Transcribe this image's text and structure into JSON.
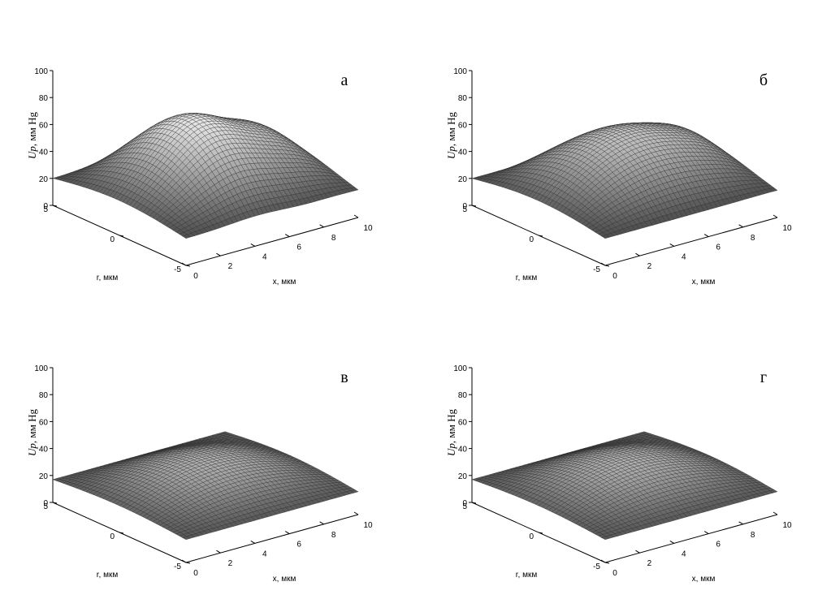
{
  "chart_data": [
    {
      "type": "surface3d",
      "panel_label": "а",
      "zlabel": "Up, мм Hg",
      "zlabel_italic_part": "Up",
      "zlabel_rest": ", мм Hg",
      "xlabel": "x, мкм",
      "ylabel": "r, мкм",
      "xlim": [
        0,
        10
      ],
      "ylim": [
        -5,
        5
      ],
      "zlim": [
        0,
        100
      ],
      "xticks": [
        "0",
        "2",
        "4",
        "6",
        "8",
        "10"
      ],
      "yticks": [
        "5",
        "0",
        "-5"
      ],
      "zticks": [
        "0",
        "20",
        "40",
        "60",
        "80",
        "100"
      ],
      "surface": {
        "base": 20,
        "amplitude": 38,
        "bumps": [
          {
            "x": 4.2,
            "r": 0.5,
            "height": 14,
            "width": 1.6
          },
          {
            "x": 8.8,
            "r": 0.5,
            "height": 8,
            "width": 1.4
          }
        ]
      }
    },
    {
      "type": "surface3d",
      "panel_label": "б",
      "zlabel": "Up, мм Hg",
      "zlabel_italic_part": "Up",
      "zlabel_rest": ", мм Hg",
      "xlabel": "x, мкм",
      "ylabel": "r, мкм",
      "xlim": [
        0,
        10
      ],
      "ylim": [
        -5,
        5
      ],
      "zlim": [
        0,
        100
      ],
      "xticks": [
        "0",
        "2",
        "4",
        "6",
        "8",
        "10"
      ],
      "yticks": [
        "5",
        "0",
        "-5"
      ],
      "zticks": [
        "0",
        "20",
        "40",
        "60",
        "80",
        "100"
      ],
      "surface": {
        "base": 20,
        "amplitude": 40,
        "bumps": [
          {
            "x": 9.2,
            "r": 0.5,
            "height": 6,
            "width": 1.2
          }
        ]
      }
    },
    {
      "type": "surface3d",
      "panel_label": "в",
      "zlabel": "Up, мм Hg",
      "zlabel_italic_part": "Up",
      "zlabel_rest": ", мм Hg",
      "xlabel": "x, мкм",
      "ylabel": "r, мкм",
      "xlim": [
        0,
        10
      ],
      "ylim": [
        -5,
        5
      ],
      "zlim": [
        0,
        100
      ],
      "xticks": [
        "0",
        "2",
        "4",
        "6",
        "8",
        "10"
      ],
      "yticks": [
        "5",
        "0",
        "-5"
      ],
      "zticks": [
        "0",
        "20",
        "40",
        "60",
        "80",
        "100"
      ],
      "surface": {
        "base": 17,
        "amplitude": 20,
        "bumps": []
      }
    },
    {
      "type": "surface3d",
      "panel_label": "г",
      "zlabel": "Up, мм Hg",
      "zlabel_italic_part": "Up",
      "zlabel_rest": ", мм Hg",
      "xlabel": "x, мкм",
      "ylabel": "r, мкм",
      "xlim": [
        0,
        10
      ],
      "ylim": [
        -5,
        5
      ],
      "zlim": [
        0,
        100
      ],
      "xticks": [
        "0",
        "2",
        "4",
        "6",
        "8",
        "10"
      ],
      "yticks": [
        "5",
        "0",
        "-5"
      ],
      "zticks": [
        "0",
        "20",
        "40",
        "60",
        "80",
        "100"
      ],
      "surface": {
        "base": 17,
        "amplitude": 20,
        "bumps": []
      }
    }
  ]
}
